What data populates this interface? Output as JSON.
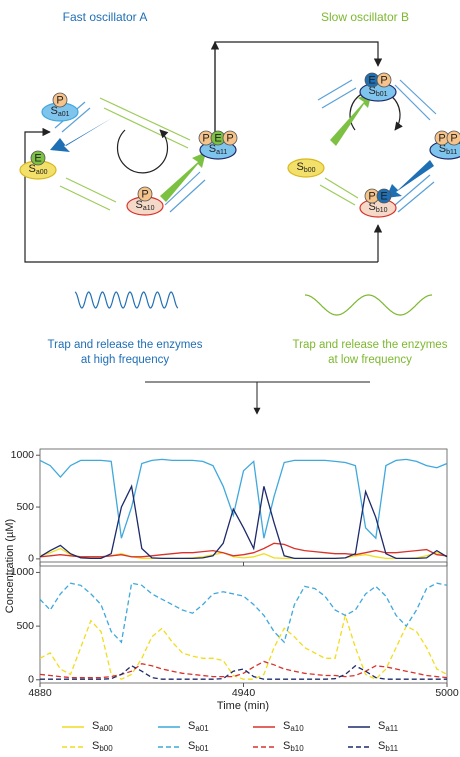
{
  "diagram": {
    "titles": [
      "Fast oscillator A",
      "Slow oscillator B"
    ],
    "captions": [
      [
        "Trap and release the enzymes",
        "at high frequency"
      ],
      [
        "Trap and release the enzymes",
        "at low frequency"
      ]
    ],
    "nodes": [
      {
        "label": "Sa01",
        "badges": [
          "P"
        ]
      },
      {
        "label": "Sa00",
        "badges": [
          "E"
        ]
      },
      {
        "label": "Sa10",
        "badges": [
          "P"
        ]
      },
      {
        "label": "Sa11",
        "badges": [
          "P",
          "E",
          "P"
        ]
      },
      {
        "label": "Sb01",
        "badges": [
          "E",
          "P"
        ]
      },
      {
        "label": "Sb00",
        "badges": []
      },
      {
        "label": "Sb10",
        "badges": [
          "P",
          "E"
        ]
      },
      {
        "label": "Sb11",
        "badges": [
          "P",
          "P"
        ]
      }
    ]
  },
  "chart_data": {
    "type": "line",
    "ylabel": "Concentration (µM)",
    "xlabel": "Time (min)",
    "x": [
      4880,
      4883,
      4886,
      4889,
      4892,
      4895,
      4898,
      4901,
      4904,
      4907,
      4910,
      4913,
      4916,
      4919,
      4922,
      4925,
      4928,
      4931,
      4934,
      4937,
      4940,
      4943,
      4946,
      4949,
      4952,
      4955,
      4958,
      4961,
      4964,
      4967,
      4970,
      4973,
      4976,
      4979,
      4982,
      4985,
      4988,
      4991,
      4994,
      4997,
      5000
    ],
    "xlim": [
      4880,
      5000
    ],
    "xticks": [
      4880,
      4940,
      5000
    ],
    "panels": [
      {
        "ylim": [
          -30,
          1060
        ],
        "yticks": [
          0,
          500,
          1000
        ],
        "series": [
          {
            "name": "Sa00",
            "color": "#f2dc1f",
            "dashed": false,
            "values": [
              30,
              60,
              100,
              40,
              20,
              20,
              20,
              30,
              50,
              20,
              5,
              5,
              5,
              5,
              5,
              10,
              20,
              40,
              60,
              20,
              10,
              20,
              50,
              10,
              5,
              5,
              5,
              5,
              5,
              5,
              10,
              30,
              40,
              20,
              5,
              5,
              5,
              10,
              30,
              60,
              20
            ]
          },
          {
            "name": "Sa01",
            "color": "#3fa8dc",
            "dashed": false,
            "values": [
              950,
              900,
              790,
              900,
              950,
              950,
              950,
              940,
              200,
              500,
              920,
              950,
              960,
              950,
              950,
              950,
              940,
              900,
              700,
              420,
              850,
              940,
              200,
              600,
              930,
              950,
              950,
              950,
              950,
              940,
              930,
              900,
              300,
              200,
              900,
              950,
              960,
              940,
              900,
              880,
              920
            ]
          },
          {
            "name": "Sa10",
            "color": "#d9322b",
            "dashed": false,
            "values": [
              20,
              30,
              40,
              30,
              20,
              20,
              20,
              30,
              40,
              20,
              20,
              30,
              40,
              50,
              60,
              60,
              70,
              80,
              60,
              30,
              40,
              60,
              100,
              150,
              140,
              100,
              80,
              70,
              60,
              50,
              50,
              40,
              60,
              80,
              60,
              60,
              70,
              80,
              90,
              40,
              30
            ]
          },
          {
            "name": "Sa11",
            "color": "#1d2a6b",
            "dashed": false,
            "values": [
              20,
              80,
              130,
              50,
              10,
              5,
              5,
              50,
              500,
              700,
              100,
              10,
              5,
              5,
              5,
              5,
              10,
              30,
              150,
              480,
              300,
              100,
              700,
              350,
              30,
              5,
              5,
              5,
              5,
              5,
              10,
              50,
              650,
              400,
              50,
              5,
              5,
              5,
              10,
              80,
              20
            ]
          }
        ]
      },
      {
        "ylim": [
          -30,
          1060
        ],
        "yticks": [
          0,
          500,
          1000
        ],
        "series": [
          {
            "name": "Sb00",
            "color": "#f2dc1f",
            "dashed": true,
            "values": [
              200,
              250,
              100,
              50,
              300,
              550,
              450,
              50,
              5,
              50,
              200,
              400,
              480,
              350,
              250,
              220,
              200,
              200,
              180,
              40,
              5,
              5,
              50,
              300,
              480,
              400,
              300,
              250,
              200,
              200,
              600,
              300,
              50,
              5,
              100,
              300,
              500,
              450,
              300,
              100,
              50
            ]
          },
          {
            "name": "Sb01",
            "color": "#3fa8dc",
            "dashed": true,
            "values": [
              750,
              650,
              800,
              900,
              880,
              800,
              700,
              450,
              350,
              900,
              880,
              800,
              750,
              700,
              650,
              620,
              700,
              800,
              820,
              800,
              780,
              700,
              600,
              450,
              350,
              700,
              870,
              850,
              780,
              650,
              600,
              650,
              800,
              870,
              780,
              600,
              500,
              650,
              850,
              900,
              880
            ]
          },
          {
            "name": "Sb10",
            "color": "#d9322b",
            "dashed": true,
            "values": [
              50,
              40,
              30,
              20,
              20,
              20,
              20,
              30,
              50,
              80,
              150,
              130,
              100,
              80,
              60,
              50,
              40,
              30,
              30,
              30,
              60,
              120,
              170,
              140,
              100,
              80,
              60,
              50,
              40,
              40,
              30,
              40,
              80,
              130,
              120,
              100,
              80,
              60,
              40,
              30,
              20
            ]
          },
          {
            "name": "Sb11",
            "color": "#1d2a6b",
            "dashed": true,
            "values": [
              5,
              5,
              5,
              5,
              5,
              5,
              5,
              10,
              50,
              130,
              80,
              20,
              5,
              5,
              5,
              5,
              5,
              5,
              10,
              80,
              100,
              30,
              5,
              5,
              5,
              5,
              5,
              5,
              5,
              10,
              50,
              130,
              80,
              20,
              5,
              5,
              5,
              5,
              5,
              5,
              5
            ]
          }
        ]
      }
    ]
  }
}
